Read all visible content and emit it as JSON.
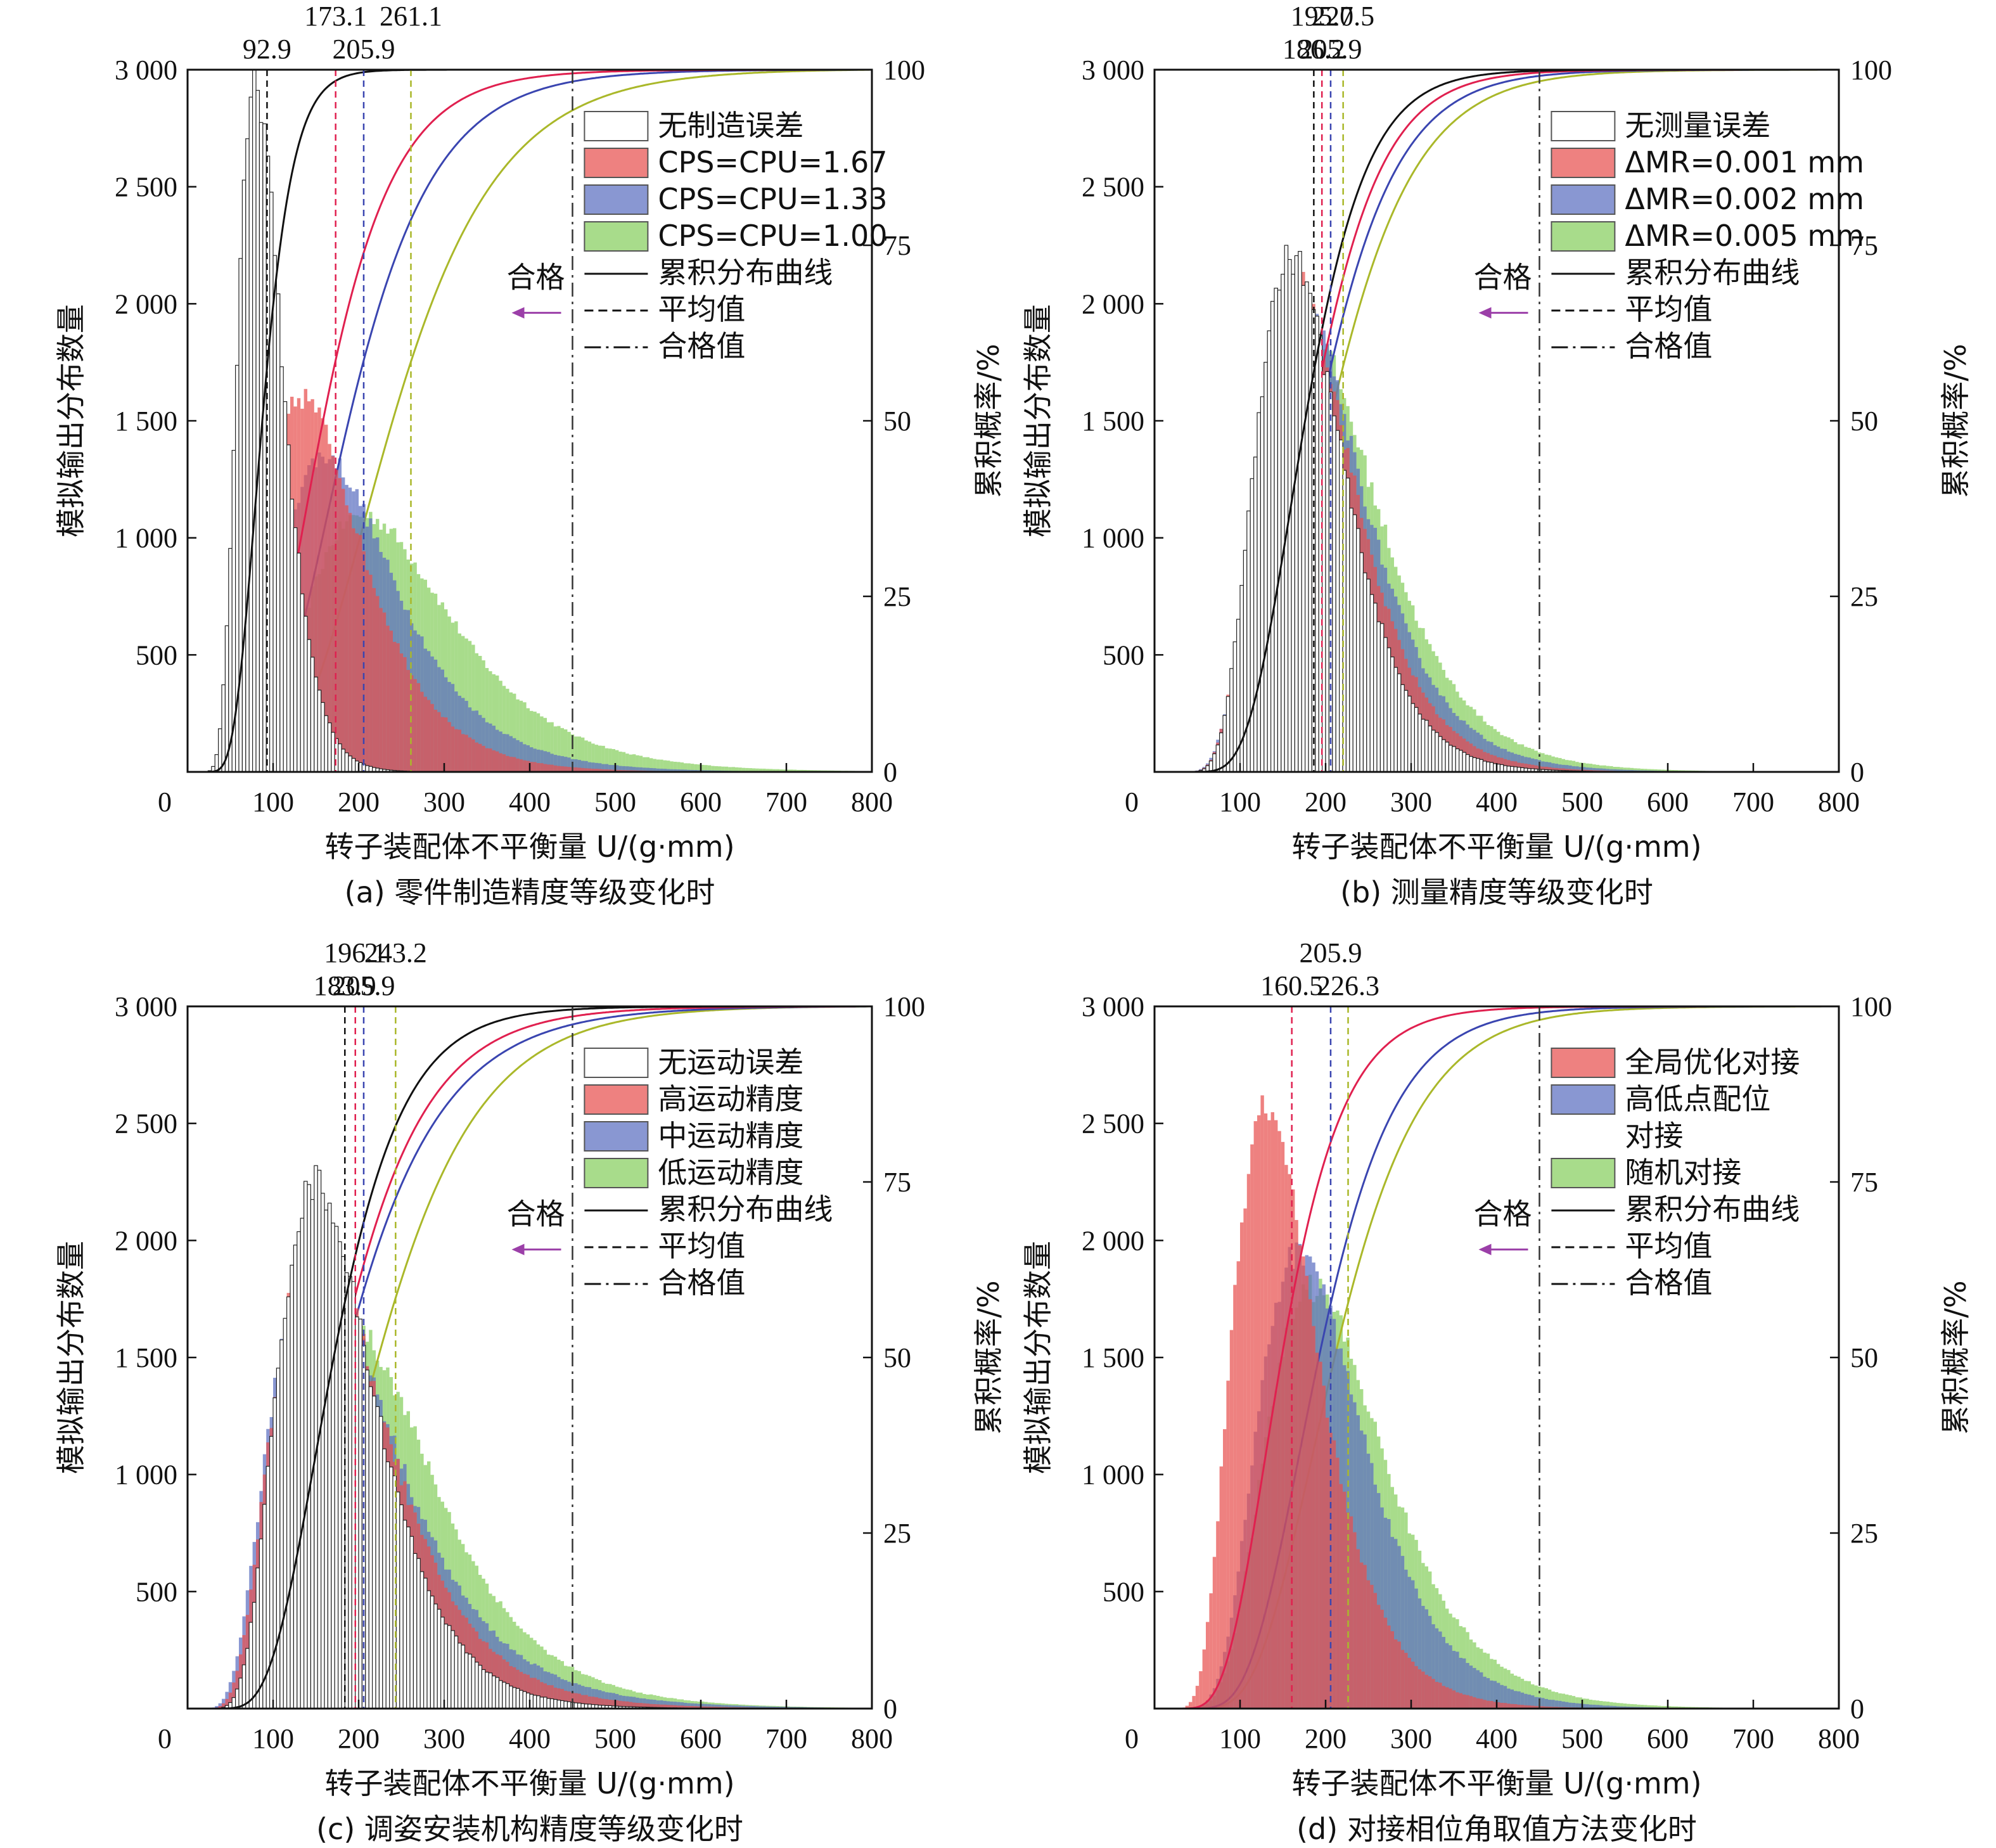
{
  "chart_data": [
    {
      "type": "bar",
      "panel": "a",
      "caption": "(a) 零件制造精度等级变化时",
      "xlabel": "转子装配体不平衡量 U/(g·mm)",
      "ylabel_left": "模拟输出分布数量",
      "ylabel_right": "累积概率/%",
      "xlim": [
        0,
        800
      ],
      "ylim_left": [
        0,
        3000
      ],
      "ylim_right": [
        0,
        100
      ],
      "xticks": [
        "0",
        "100",
        "200",
        "300",
        "400",
        "500",
        "600",
        "700",
        "800"
      ],
      "yticks_left": [
        "500",
        "1 000",
        "1 500",
        "2 000",
        "2 500",
        "3 000"
      ],
      "yticks_right": [
        "0",
        "25",
        "50",
        "75",
        "100"
      ],
      "qualified_value": 450,
      "qualified_label": "合格",
      "legend_position": "top-right",
      "legend": [
        "无制造误差",
        "CPS=CPU=1.67",
        "CPS=CPU=1.33",
        "CPS=CPU=1.00",
        "累积分布曲线",
        "平均值",
        "合格值"
      ],
      "mean_labels": [
        {
          "text": "92.9",
          "row": 2,
          "value": 92.9
        },
        {
          "text": "173.1",
          "row": 1,
          "value": 173.1
        },
        {
          "text": "261.1",
          "row": 1,
          "value": 261.1
        },
        {
          "text": "205.9",
          "row": 2,
          "value": 205.9
        }
      ],
      "series": [
        {
          "name": "无制造误差",
          "mean": 92.9,
          "peak_x": 80,
          "peak_count": 2950
        },
        {
          "name": "CPS=CPU=1.67",
          "mean": 173.1,
          "peak_x": 135,
          "peak_count": 1600
        },
        {
          "name": "CPS=CPU=1.33",
          "mean": 205.9,
          "peak_x": 160,
          "peak_count": 1350
        },
        {
          "name": "CPS=CPU=1.00",
          "mean": 261.1,
          "peak_x": 205,
          "peak_count": 1100
        }
      ]
    },
    {
      "type": "bar",
      "panel": "b",
      "caption": "(b) 测量精度等级变化时",
      "xlabel": "转子装配体不平衡量 U/(g·mm)",
      "ylabel_left": "模拟输出分布数量",
      "ylabel_right": "累积概率/%",
      "xlim": [
        0,
        800
      ],
      "ylim_left": [
        0,
        3000
      ],
      "ylim_right": [
        0,
        100
      ],
      "xticks": [
        "0",
        "100",
        "200",
        "300",
        "400",
        "500",
        "600",
        "700",
        "800"
      ],
      "yticks_left": [
        "500",
        "1 000",
        "1 500",
        "2 000",
        "2 500",
        "3 000"
      ],
      "yticks_right": [
        "0",
        "25",
        "50",
        "75",
        "100"
      ],
      "qualified_value": 450,
      "qualified_label": "合格",
      "legend_position": "top-right",
      "legend": [
        "无测量误差",
        "ΔMR=0.001 mm",
        "ΔMR=0.002 mm",
        "ΔMR=0.005 mm",
        "累积分布曲线",
        "平均值",
        "合格值"
      ],
      "mean_labels": [
        {
          "text": "195.7",
          "row": 1,
          "value": 195.7
        },
        {
          "text": "220.5",
          "row": 1,
          "value": 220.5
        },
        {
          "text": "186.2",
          "row": 2,
          "value": 186.2
        },
        {
          "text": "205.9",
          "row": 2,
          "value": 205.9
        }
      ],
      "series": [
        {
          "name": "无测量误差",
          "mean": 186.2,
          "peak_x": 160,
          "peak_count": 2200
        },
        {
          "name": "ΔMR=0.001 mm",
          "mean": 195.7,
          "peak_x": 165,
          "peak_count": 2100
        },
        {
          "name": "ΔMR=0.002 mm",
          "mean": 205.9,
          "peak_x": 170,
          "peak_count": 2000
        },
        {
          "name": "ΔMR=0.005 mm",
          "mean": 220.5,
          "peak_x": 180,
          "peak_count": 1880
        }
      ]
    },
    {
      "type": "bar",
      "panel": "c",
      "caption": "(c) 调姿安装机构精度等级变化时",
      "xlabel": "转子装配体不平衡量 U/(g·mm)",
      "ylabel_left": "模拟输出分布数量",
      "ylabel_right": "累积概率/%",
      "xlim": [
        0,
        800
      ],
      "ylim_left": [
        0,
        3000
      ],
      "ylim_right": [
        0,
        100
      ],
      "xticks": [
        "0",
        "100",
        "200",
        "300",
        "400",
        "500",
        "600",
        "700",
        "800"
      ],
      "yticks_left": [
        "500",
        "1 000",
        "1 500",
        "2 000",
        "2 500",
        "3 000"
      ],
      "yticks_right": [
        "0",
        "25",
        "50",
        "75",
        "100"
      ],
      "qualified_value": 450,
      "qualified_label": "合格",
      "legend_position": "top-right",
      "legend": [
        "无运动误差",
        "高运动精度",
        "中运动精度",
        "低运动精度",
        "累积分布曲线",
        "平均值",
        "合格值"
      ],
      "mean_labels": [
        {
          "text": "196.1",
          "row": 1,
          "value": 196.1
        },
        {
          "text": "243.2",
          "row": 1,
          "value": 243.2
        },
        {
          "text": "183.9",
          "row": 2,
          "value": 183.9
        },
        {
          "text": "205.9",
          "row": 2,
          "value": 205.9
        }
      ],
      "series": [
        {
          "name": "无运动误差",
          "mean": 183.9,
          "peak_x": 150,
          "peak_count": 2250
        },
        {
          "name": "高运动精度",
          "mean": 196.1,
          "peak_x": 150,
          "peak_count": 2050
        },
        {
          "name": "中运动精度",
          "mean": 205.9,
          "peak_x": 150,
          "peak_count": 1950
        },
        {
          "name": "低运动精度",
          "mean": 243.2,
          "peak_x": 190,
          "peak_count": 1650
        }
      ]
    },
    {
      "type": "bar",
      "panel": "d",
      "caption": "(d) 对接相位角取值方法变化时",
      "xlabel": "转子装配体不平衡量 U/(g·mm)",
      "ylabel_left": "模拟输出分布数量",
      "ylabel_right": "累积概率/%",
      "xlim": [
        0,
        800
      ],
      "ylim_left": [
        0,
        3000
      ],
      "ylim_right": [
        0,
        100
      ],
      "xticks": [
        "0",
        "100",
        "200",
        "300",
        "400",
        "500",
        "600",
        "700",
        "800"
      ],
      "yticks_left": [
        "500",
        "1 000",
        "1 500",
        "2 000",
        "2 500",
        "3 000"
      ],
      "yticks_right": [
        "0",
        "25",
        "50",
        "75",
        "100"
      ],
      "qualified_value": 450,
      "qualified_label": "合格",
      "legend_position": "top-right",
      "legend": [
        "全局优化对接",
        "高低点配位",
        "对接",
        "随机对接",
        "累积分布曲线",
        "平均值",
        "合格值"
      ],
      "mean_labels": [
        {
          "text": "205.9",
          "row": 1,
          "value": 205.9
        },
        {
          "text": "160.5",
          "row": 2,
          "value": 160.5
        },
        {
          "text": "226.3",
          "row": 2,
          "value": 226.3
        }
      ],
      "series": [
        {
          "name": "全局优化对接",
          "mean": 160.5,
          "peak_x": 130,
          "peak_count": 2550
        },
        {
          "name": "高低点配位对接",
          "mean": 205.9,
          "peak_x": 170,
          "peak_count": 1950
        },
        {
          "name": "随机对接",
          "mean": 226.3,
          "peak_x": 185,
          "peak_count": 1800
        }
      ]
    }
  ],
  "colors": {
    "white_series": "#ffffff",
    "red": "#e8504f",
    "blue": "#5b6fc0",
    "green": "#86cf5e",
    "black_curve": "#111111",
    "red_curve": "#e0204f",
    "blue_curve": "#3a45b0",
    "green_curve": "#aab82a",
    "arrow": "#9b3fa8"
  }
}
